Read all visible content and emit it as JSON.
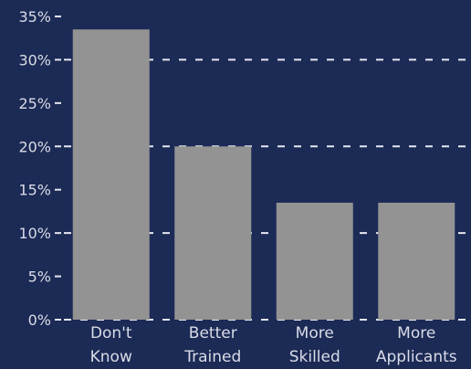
{
  "colors": {
    "background": "#1c2a56",
    "bar": "#939393",
    "text": "#d9dce6",
    "grid": "#e6e8ef"
  },
  "chart_data": {
    "type": "bar",
    "title": "",
    "xlabel": "",
    "ylabel": "",
    "categories": [
      [
        "Don't",
        "Know"
      ],
      [
        "Better",
        "Trained"
      ],
      [
        "More",
        "Skilled"
      ],
      [
        "More",
        "Applicants"
      ]
    ],
    "values": [
      33.5,
      20,
      13.5,
      13.5
    ],
    "unit": "%",
    "ylim": [
      0,
      35
    ],
    "yticks": [
      "0%",
      "5%",
      "10%",
      "15%",
      "20%",
      "25%",
      "30%",
      "35%"
    ],
    "grid": "dashed at 0%, 10%, 20%, 30%",
    "legend": "none"
  }
}
